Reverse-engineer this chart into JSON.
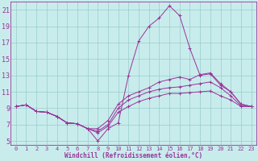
{
  "xlabel": "Windchill (Refroidissement éolien,°C)",
  "background_color": "#c8ecec",
  "line_color": "#993399",
  "grid_color": "#99cccc",
  "axis_color": "#993399",
  "xlim": [
    -0.5,
    23.5
  ],
  "ylim": [
    4.5,
    22
  ],
  "yticks": [
    5,
    7,
    9,
    11,
    13,
    15,
    17,
    19,
    21
  ],
  "xticks": [
    0,
    1,
    2,
    3,
    4,
    5,
    6,
    7,
    8,
    9,
    10,
    11,
    12,
    13,
    14,
    15,
    16,
    17,
    18,
    19,
    20,
    21,
    22,
    23
  ],
  "lines": [
    [
      9.2,
      9.4,
      8.6,
      8.5,
      8.0,
      7.2,
      7.1,
      6.5,
      5.0,
      6.5,
      7.2,
      13.0,
      17.2,
      19.0,
      20.0,
      21.5,
      20.3,
      16.3,
      13.0,
      13.2,
      11.8,
      11.0,
      9.5,
      9.2
    ],
    [
      9.2,
      9.4,
      8.6,
      8.5,
      8.0,
      7.2,
      7.1,
      6.5,
      6.5,
      7.5,
      9.5,
      10.5,
      11.0,
      11.5,
      12.2,
      12.5,
      12.8,
      12.5,
      13.1,
      13.3,
      12.0,
      11.0,
      9.5,
      9.2
    ],
    [
      9.2,
      9.4,
      8.6,
      8.5,
      8.0,
      7.2,
      7.1,
      6.5,
      6.2,
      7.0,
      9.0,
      10.0,
      10.5,
      11.0,
      11.3,
      11.5,
      11.6,
      11.8,
      12.0,
      12.2,
      11.5,
      10.5,
      9.3,
      9.2
    ],
    [
      9.2,
      9.4,
      8.6,
      8.5,
      8.0,
      7.2,
      7.1,
      6.5,
      6.0,
      6.8,
      8.5,
      9.2,
      9.8,
      10.2,
      10.5,
      10.8,
      10.8,
      10.9,
      11.0,
      11.1,
      10.5,
      10.0,
      9.2,
      9.2
    ]
  ]
}
